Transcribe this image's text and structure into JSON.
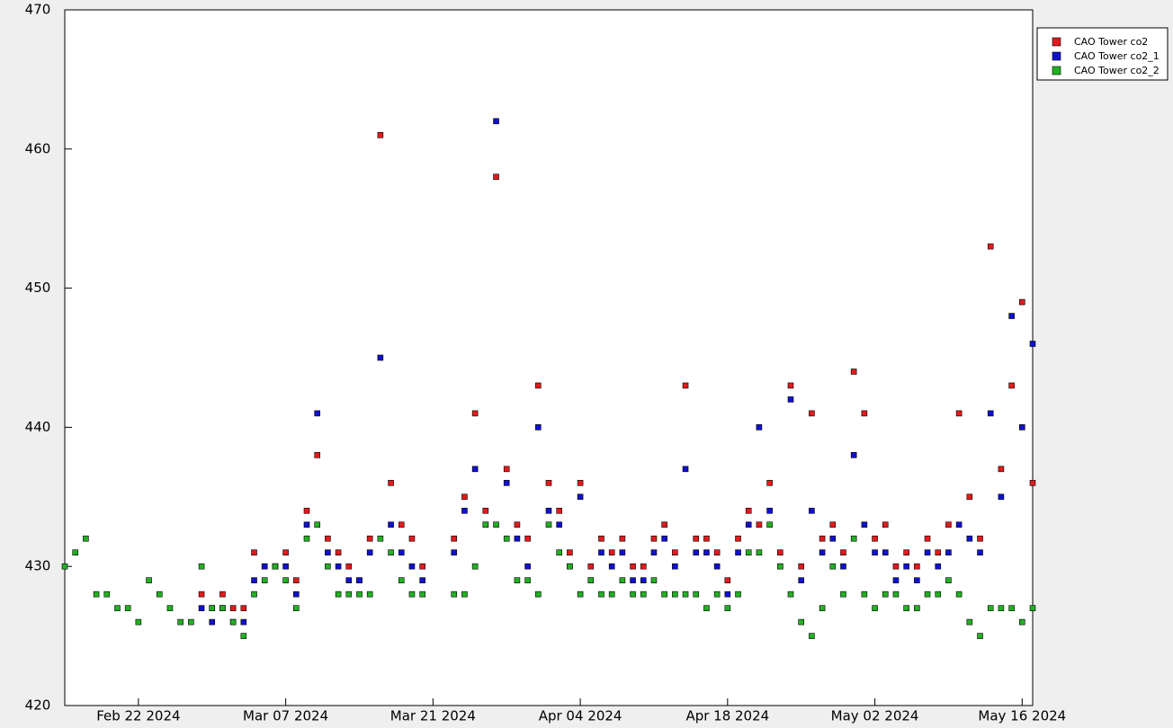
{
  "chart_data": {
    "type": "scatter",
    "x": [
      "2024-02-15",
      "2024-02-16",
      "2024-02-17",
      "2024-02-18",
      "2024-02-19",
      "2024-02-20",
      "2024-02-21",
      "2024-02-22",
      "2024-02-23",
      "2024-02-24",
      "2024-02-25",
      "2024-02-26",
      "2024-02-27",
      "2024-02-28",
      "2024-02-29",
      "2024-03-01",
      "2024-03-02",
      "2024-03-03",
      "2024-03-04",
      "2024-03-05",
      "2024-03-06",
      "2024-03-07",
      "2024-03-08",
      "2024-03-09",
      "2024-03-10",
      "2024-03-11",
      "2024-03-12",
      "2024-03-13",
      "2024-03-14",
      "2024-03-15",
      "2024-03-16",
      "2024-03-17",
      "2024-03-18",
      "2024-03-19",
      "2024-03-20",
      "2024-03-21",
      "2024-03-22",
      "2024-03-23",
      "2024-03-24",
      "2024-03-25",
      "2024-03-26",
      "2024-03-27",
      "2024-03-28",
      "2024-03-29",
      "2024-03-30",
      "2024-03-31",
      "2024-04-01",
      "2024-04-02",
      "2024-04-03",
      "2024-04-04",
      "2024-04-05",
      "2024-04-06",
      "2024-04-07",
      "2024-04-08",
      "2024-04-09",
      "2024-04-10",
      "2024-04-11",
      "2024-04-12",
      "2024-04-13",
      "2024-04-14",
      "2024-04-15",
      "2024-04-16",
      "2024-04-17",
      "2024-04-18",
      "2024-04-19",
      "2024-04-20",
      "2024-04-21",
      "2024-04-22",
      "2024-04-23",
      "2024-04-24",
      "2024-04-25",
      "2024-04-26",
      "2024-04-27",
      "2024-04-28",
      "2024-04-29",
      "2024-04-30",
      "2024-05-01",
      "2024-05-02",
      "2024-05-03",
      "2024-05-04",
      "2024-05-05",
      "2024-05-06",
      "2024-05-07",
      "2024-05-08",
      "2024-05-09",
      "2024-05-10",
      "2024-05-11",
      "2024-05-12",
      "2024-05-13",
      "2024-05-14",
      "2024-05-15",
      "2024-05-16",
      "2024-05-17"
    ],
    "series": [
      {
        "name": "CAO Tower co2",
        "color": "#e31a1c",
        "values": [
          null,
          null,
          null,
          null,
          null,
          null,
          null,
          null,
          null,
          null,
          null,
          null,
          null,
          428,
          427,
          428,
          427,
          427,
          431,
          430,
          430,
          431,
          429,
          434,
          438,
          432,
          431,
          430,
          429,
          432,
          461,
          436,
          433,
          432,
          430,
          null,
          null,
          432,
          435,
          441,
          434,
          458,
          437,
          433,
          432,
          443,
          436,
          434,
          431,
          436,
          430,
          432,
          431,
          432,
          430,
          430,
          432,
          433,
          431,
          443,
          432,
          432,
          431,
          429,
          432,
          434,
          433,
          436,
          431,
          443,
          430,
          441,
          432,
          433,
          431,
          444,
          441,
          432,
          433,
          430,
          431,
          430,
          432,
          431,
          433,
          441,
          435,
          432,
          453,
          437,
          443,
          449,
          436
        ]
      },
      {
        "name": "CAO Tower co2_1",
        "color": "#1010d0",
        "values": [
          null,
          null,
          null,
          null,
          null,
          null,
          null,
          null,
          null,
          null,
          null,
          null,
          null,
          427,
          426,
          427,
          426,
          426,
          429,
          430,
          430,
          430,
          428,
          433,
          441,
          431,
          430,
          429,
          429,
          431,
          445,
          433,
          431,
          430,
          429,
          null,
          null,
          431,
          434,
          437,
          433,
          462,
          436,
          432,
          430,
          440,
          434,
          433,
          430,
          435,
          429,
          431,
          430,
          431,
          429,
          429,
          431,
          432,
          430,
          437,
          431,
          431,
          430,
          428,
          431,
          433,
          440,
          434,
          430,
          442,
          429,
          434,
          431,
          432,
          430,
          438,
          433,
          431,
          431,
          429,
          430,
          429,
          431,
          430,
          431,
          433,
          432,
          431,
          441,
          435,
          448,
          440,
          446
        ]
      },
      {
        "name": "CAO Tower co2_2",
        "color": "#22b022",
        "values": [
          430,
          431,
          432,
          428,
          428,
          427,
          427,
          426,
          429,
          428,
          427,
          426,
          426,
          430,
          427,
          427,
          426,
          425,
          428,
          429,
          430,
          429,
          427,
          432,
          433,
          430,
          428,
          428,
          428,
          428,
          432,
          431,
          429,
          428,
          428,
          null,
          null,
          428,
          428,
          430,
          433,
          433,
          432,
          429,
          429,
          428,
          433,
          431,
          430,
          428,
          429,
          428,
          428,
          429,
          428,
          428,
          429,
          428,
          428,
          428,
          428,
          427,
          428,
          427,
          428,
          431,
          431,
          433,
          430,
          428,
          426,
          425,
          427,
          430,
          428,
          432,
          428,
          427,
          428,
          428,
          427,
          427,
          428,
          428,
          429,
          428,
          426,
          425,
          427,
          427,
          427,
          426,
          427
        ]
      }
    ],
    "xlim": [
      "2024-02-15",
      "2024-05-17"
    ],
    "xticks": [
      {
        "value": "2024-02-22",
        "label": "Feb 22 2024"
      },
      {
        "value": "2024-03-07",
        "label": "Mar 07 2024"
      },
      {
        "value": "2024-03-21",
        "label": "Mar 21 2024"
      },
      {
        "value": "2024-04-04",
        "label": "Apr 04 2024"
      },
      {
        "value": "2024-04-18",
        "label": "Apr 18 2024"
      },
      {
        "value": "2024-05-02",
        "label": "May 02 2024"
      },
      {
        "value": "2024-05-16",
        "label": "May 16 2024"
      }
    ],
    "ylim": [
      420,
      470
    ],
    "yticks": [
      420,
      430,
      440,
      450,
      460,
      470
    ],
    "legend": "right",
    "grid": false
  }
}
